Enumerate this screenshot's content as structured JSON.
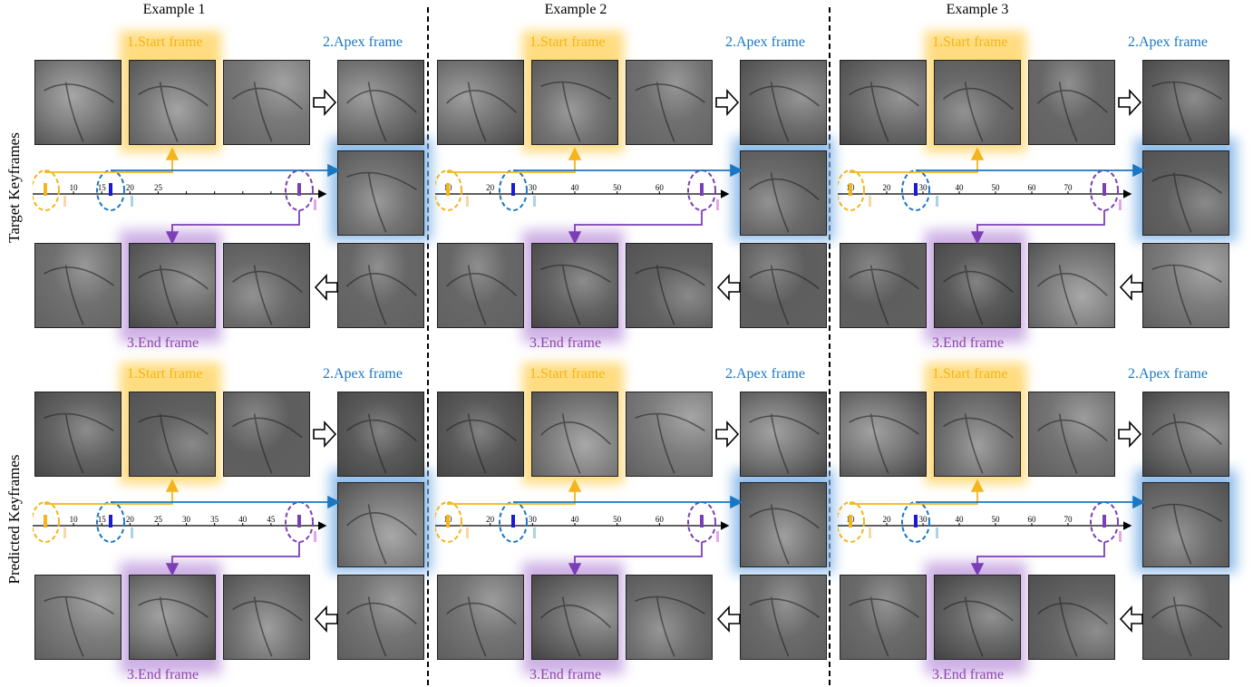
{
  "examples": [
    {
      "title": "Example 1"
    },
    {
      "title": "Example 2"
    },
    {
      "title": "Example 3"
    }
  ],
  "rows": [
    {
      "label": "Target Keyframes"
    },
    {
      "label": "Predicted Keyframes"
    }
  ],
  "frame_labels": {
    "start": "1.Start frame",
    "apex": "2.Apex frame",
    "end": "3.End frame"
  },
  "colors": {
    "start": "#f3b519",
    "apex": "#1b76c2",
    "end": "#7b3fb5",
    "start_glow": "#ffd66b",
    "apex_glow": "#7fb3e8",
    "end_glow": "#c5a3e0"
  },
  "timelines": [
    {
      "row": 0,
      "example": 0,
      "ticks": [
        "5",
        "10",
        "15",
        "20",
        "25",
        "",
        "",
        "",
        ""
      ]
    },
    {
      "row": 0,
      "example": 1,
      "ticks": [
        "10",
        "20",
        "30",
        "40",
        "50",
        "60"
      ]
    },
    {
      "row": 0,
      "example": 2,
      "ticks": [
        "10",
        "20",
        "30",
        "40",
        "50",
        "60",
        "70"
      ]
    },
    {
      "row": 1,
      "example": 0,
      "ticks": [
        "5",
        "10",
        "15",
        "20",
        "25",
        "30",
        "35",
        "40",
        "45"
      ]
    },
    {
      "row": 1,
      "example": 1,
      "ticks": [
        "10",
        "20",
        "30",
        "40",
        "50",
        "60"
      ]
    },
    {
      "row": 1,
      "example": 2,
      "ticks": [
        "10",
        "20",
        "30",
        "40",
        "50",
        "60",
        "70"
      ]
    }
  ]
}
